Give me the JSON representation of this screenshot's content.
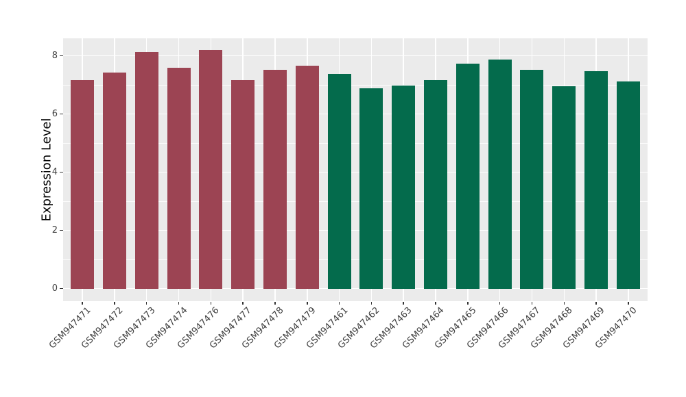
{
  "chart_data": {
    "type": "bar",
    "title": "",
    "xlabel": "",
    "ylabel": "Expression Level",
    "categories": [
      "GSM947471",
      "GSM947472",
      "GSM947473",
      "GSM947474",
      "GSM947476",
      "GSM947477",
      "GSM947478",
      "GSM947479",
      "GSM947461",
      "GSM947462",
      "GSM947463",
      "GSM947464",
      "GSM947465",
      "GSM947466",
      "GSM947467",
      "GSM947468",
      "GSM947469",
      "GSM947470"
    ],
    "values": [
      7.16,
      7.42,
      8.14,
      7.58,
      8.2,
      7.16,
      7.51,
      7.67,
      7.38,
      6.88,
      6.97,
      7.17,
      7.72,
      7.88,
      7.52,
      6.96,
      7.47,
      7.12
    ],
    "bar_groups": [
      "group1",
      "group1",
      "group1",
      "group1",
      "group1",
      "group1",
      "group1",
      "group1",
      "group2",
      "group2",
      "group2",
      "group2",
      "group2",
      "group2",
      "group2",
      "group2",
      "group2",
      "group2"
    ],
    "group_colors": {
      "group1": "#9C4453",
      "group2": "#046B4C"
    },
    "y_ticks": [
      0,
      2,
      4,
      6,
      8
    ],
    "y_minor_ticks": [
      1,
      3,
      5,
      7
    ],
    "ylim": [
      -0.43,
      8.6
    ],
    "legend_position": "none",
    "grid": "on",
    "theme": {
      "panel_bg": "#EBEBEB",
      "grid_color": "#FFFFFF",
      "tick_color": "#333333",
      "tick_label_color": "#404040",
      "axis_title_color": "#000000",
      "background": "#FFFFFF"
    }
  }
}
